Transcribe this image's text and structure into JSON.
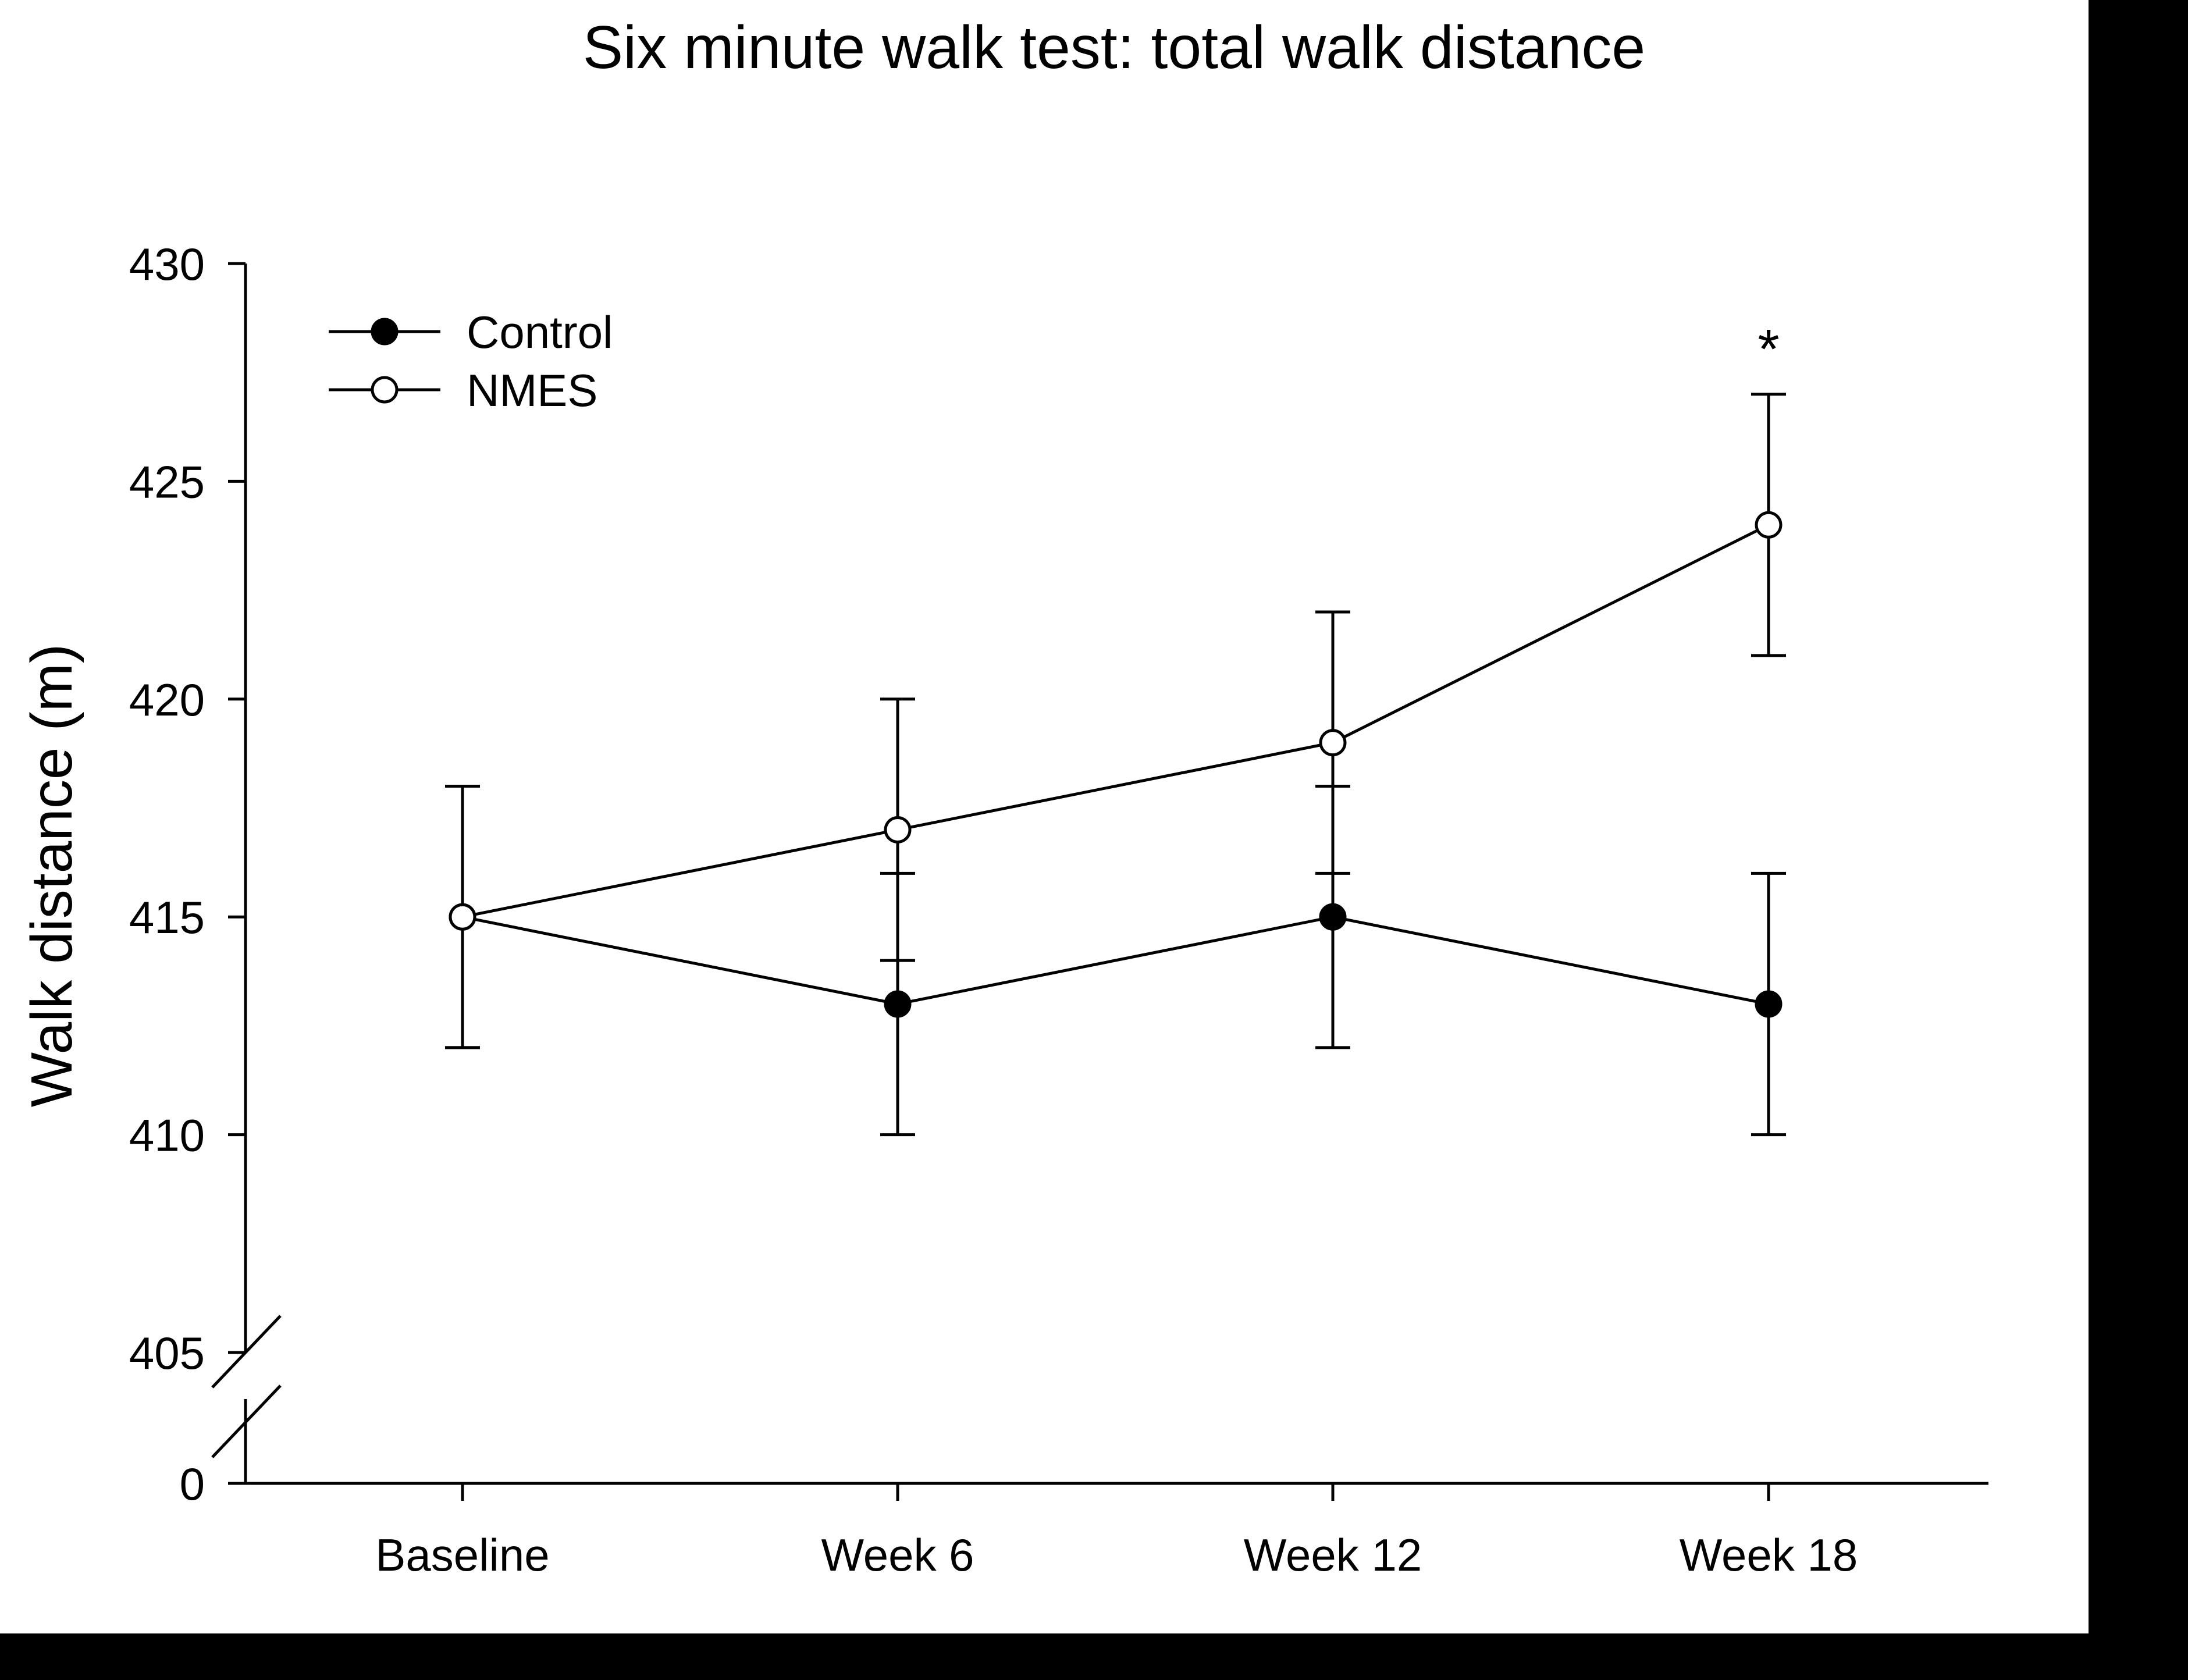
{
  "chart_data": {
    "type": "line",
    "title": "Six minute walk test: total walk distance",
    "xlabel": "",
    "ylabel": "Walk distance (m)",
    "categories": [
      "Baseline",
      "Week 6",
      "Week 12",
      "Week 18"
    ],
    "ylim": [
      405,
      430
    ],
    "broken_axis": true,
    "y_ticks": [
      405,
      410,
      415,
      420,
      425,
      430
    ],
    "y_ticks_lower": [
      0
    ],
    "y_tick_labels": [
      "405",
      "410",
      "415",
      "420",
      "425",
      "430"
    ],
    "y_tick_labels_lower": [
      "0"
    ],
    "legend_position": "top-left",
    "series": [
      {
        "name": "Control",
        "marker": "filled-circle",
        "values": [
          415,
          413,
          415,
          413
        ],
        "error_upper": [
          418,
          416,
          418,
          416
        ],
        "error_lower": [
          412,
          410,
          412,
          410
        ]
      },
      {
        "name": "NMES",
        "marker": "open-circle",
        "values": [
          415,
          417,
          419,
          424
        ],
        "error_upper": [
          418,
          420,
          422,
          427
        ],
        "error_lower": [
          412,
          414,
          416,
          421
        ]
      }
    ],
    "annotations": [
      {
        "text": "*",
        "category": "Week 18",
        "value": 428.2
      }
    ]
  },
  "colors": {
    "background": "#ffffff",
    "border": "#000000",
    "line": "#000000",
    "filled_marker": "#000000",
    "open_marker_fill": "#ffffff"
  }
}
